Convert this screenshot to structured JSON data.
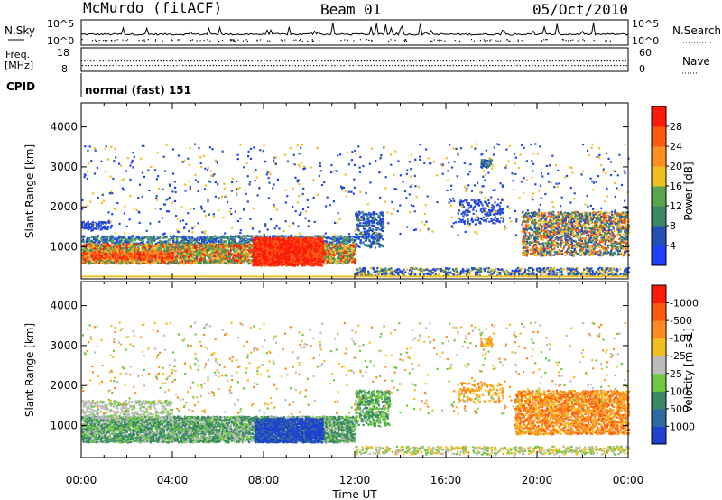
{
  "header": {
    "station": "McMurdo (fitACF)",
    "beam": "Beam 01",
    "date": "05/Oct/2010"
  },
  "noise_panel": {
    "left_label": "N.Sky",
    "right_label": "N.Search",
    "tick_top": "10^5",
    "tick_bottom": "10^0"
  },
  "freq_panel": {
    "left_label_line1": "Freq.",
    "left_label_line2": "[MHz]",
    "right_label": "Nave",
    "left_ticks": [
      "18",
      "8"
    ],
    "right_ticks": [
      "60",
      "0"
    ]
  },
  "cpid_panel": {
    "label": "CPID",
    "value": "normal (fast) 151"
  },
  "chart_data": [
    {
      "type": "heatmap",
      "title": "",
      "ylabel": "Slant Range [km]",
      "xlabel": "",
      "ylim": [
        200,
        4600
      ],
      "yticks": [
        1000,
        2000,
        3000,
        4000
      ],
      "xticks": [
        "00:00",
        "04:00",
        "08:00",
        "12:00",
        "16:00",
        "20:00",
        "00:00"
      ],
      "colorbar": {
        "label": "Power [dB]",
        "ticks": [
          "4",
          "8",
          "12",
          "16",
          "20",
          "24",
          "28"
        ],
        "colors": [
          "#1f3fff",
          "#2650b8",
          "#3a8a66",
          "#5aa550",
          "#f0c020",
          "#ff9020",
          "#ff5a10",
          "#ff1a0a"
        ]
      }
    },
    {
      "type": "heatmap",
      "title": "",
      "ylabel": "Slant Range [km]",
      "xlabel": "Time UT",
      "ylim": [
        200,
        4600
      ],
      "yticks": [
        1000,
        2000,
        3000,
        4000
      ],
      "xticks": [
        "00:00",
        "04:00",
        "08:00",
        "12:00",
        "16:00",
        "20:00",
        "00:00"
      ],
      "colorbar": {
        "label": "Velocity [m s-1]",
        "ticks": [
          "1000",
          "500",
          "100",
          "25",
          "-25",
          "-100",
          "-500",
          "-1000"
        ],
        "colors": [
          "#2040d0",
          "#2e6aa0",
          "#3a8a66",
          "#70c840",
          "#bcbcbc",
          "#f0c020",
          "#ff8a20",
          "#ff5a10",
          "#ff1a0a"
        ]
      }
    }
  ]
}
